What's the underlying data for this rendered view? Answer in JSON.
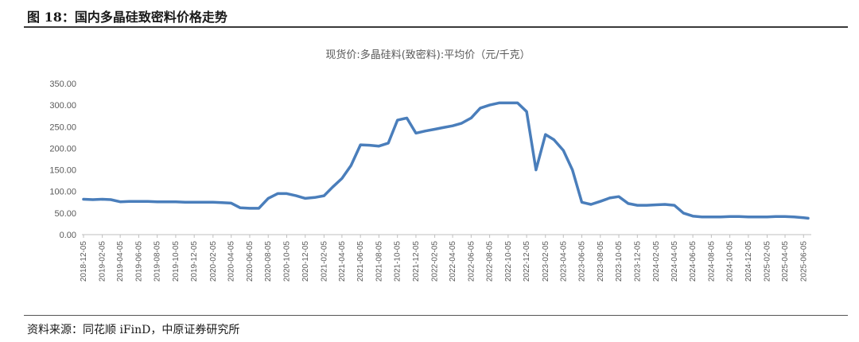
{
  "figure": {
    "title": "图 18：国内多晶硅致密料价格走势",
    "source": "资料来源：同花顺 iFinD，中原证券研究所"
  },
  "chart_data": {
    "type": "line",
    "title": "现货价:多晶硅料(致密料):平均价（元/千克）",
    "xlabel": "",
    "ylabel": "",
    "ylim": [
      0,
      350
    ],
    "yticks": [
      "0.00",
      "50.00",
      "100.00",
      "150.00",
      "200.00",
      "250.00",
      "300.00",
      "350.00"
    ],
    "xticks": [
      "2018-12-05",
      "2019-02-05",
      "2019-04-05",
      "2019-06-05",
      "2019-08-05",
      "2019-10-05",
      "2019-12-05",
      "2020-02-05",
      "2020-04-05",
      "2020-06-05",
      "2020-08-05",
      "2020-10-05",
      "2020-12-05",
      "2021-02-05",
      "2021-04-05",
      "2021-06-05",
      "2021-08-05",
      "2021-10-05",
      "2021-12-05",
      "2022-02-05",
      "2022-04-05",
      "2022-06-05",
      "2022-08-05",
      "2022-10-05",
      "2022-12-05",
      "2023-02-05",
      "2023-04-05",
      "2023-06-05",
      "2023-08-05",
      "2023-10-05",
      "2023-12-05",
      "2024-02-05",
      "2024-04-05",
      "2024-06-05",
      "2024-08-05",
      "2024-10-05",
      "2024-12-05",
      "2025-02-05",
      "2025-04-05",
      "2025-06-05"
    ],
    "grid": false,
    "color": "#4a7ebb",
    "series": [
      {
        "x": [
          "2018-12-05",
          "2019-01-05",
          "2019-02-05",
          "2019-03-05",
          "2019-04-05",
          "2019-05-05",
          "2019-06-05",
          "2019-07-05",
          "2019-08-05",
          "2019-09-05",
          "2019-10-05",
          "2019-11-05",
          "2019-12-05",
          "2020-01-05",
          "2020-02-05",
          "2020-03-05",
          "2020-04-05",
          "2020-05-05",
          "2020-06-05",
          "2020-07-05",
          "2020-08-05",
          "2020-09-05",
          "2020-10-05",
          "2020-11-05",
          "2020-12-05",
          "2021-01-05",
          "2021-02-05",
          "2021-03-05",
          "2021-04-05",
          "2021-05-05",
          "2021-06-05",
          "2021-07-05",
          "2021-08-05",
          "2021-09-05",
          "2021-10-05",
          "2021-11-05",
          "2021-12-05",
          "2022-01-05",
          "2022-02-05",
          "2022-03-05",
          "2022-04-05",
          "2022-05-05",
          "2022-06-05",
          "2022-07-05",
          "2022-08-05",
          "2022-09-05",
          "2022-10-05",
          "2022-11-05",
          "2022-12-05",
          "2023-01-05",
          "2023-02-05",
          "2023-03-05",
          "2023-04-05",
          "2023-05-05",
          "2023-06-05",
          "2023-07-05",
          "2023-08-05",
          "2023-09-05",
          "2023-10-05",
          "2023-11-05",
          "2023-12-05",
          "2024-01-05",
          "2024-02-05",
          "2024-03-05",
          "2024-04-05",
          "2024-05-05",
          "2024-06-05",
          "2024-07-05",
          "2024-08-05",
          "2024-09-05",
          "2024-10-05",
          "2024-11-05",
          "2024-12-05",
          "2025-01-05",
          "2025-02-05",
          "2025-03-05",
          "2025-04-05",
          "2025-05-05",
          "2025-06-05",
          "2025-06-20"
        ],
        "values": [
          82,
          81,
          82,
          81,
          76,
          77,
          77,
          77,
          76,
          76,
          76,
          75,
          75,
          75,
          75,
          74,
          73,
          62,
          61,
          61,
          84,
          95,
          95,
          90,
          84,
          86,
          90,
          110,
          130,
          160,
          208,
          207,
          205,
          212,
          265,
          270,
          235,
          240,
          244,
          248,
          252,
          258,
          270,
          293,
          300,
          305,
          305,
          305,
          285,
          150,
          232,
          220,
          195,
          150,
          75,
          70,
          77,
          85,
          88,
          72,
          68,
          68,
          69,
          70,
          68,
          50,
          43,
          41,
          41,
          41,
          42,
          42,
          41,
          41,
          41,
          42,
          42,
          41,
          39,
          38
        ]
      }
    ]
  }
}
